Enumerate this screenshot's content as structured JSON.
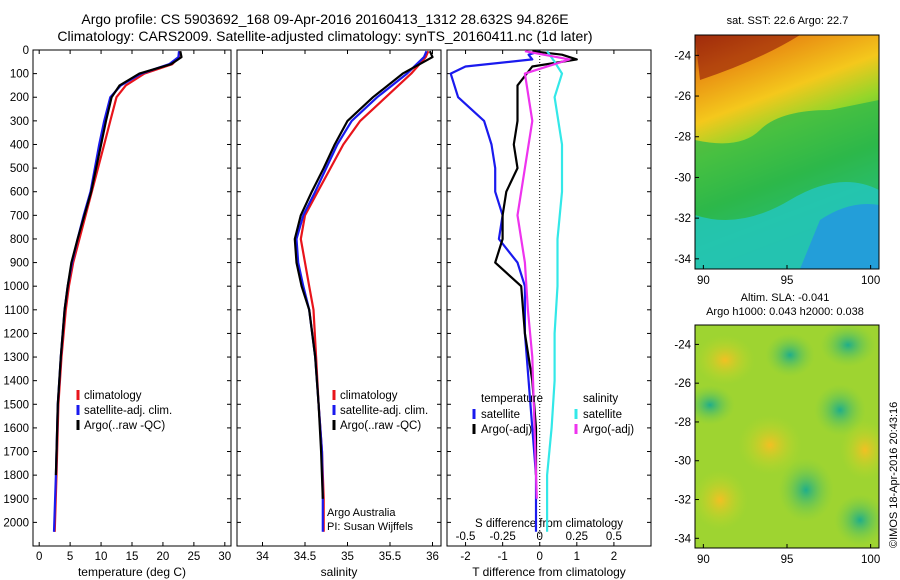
{
  "header": {
    "line1": "Argo profile: CS 5903692_168 09-Apr-2016 20160413_1312 28.632S 94.826E",
    "line2": "Climatology: CARS2009. Satellite-adjusted climatology: synTS_20160411.nc (1d later)"
  },
  "map_sst": {
    "title": "sat. SST: 22.6 Argo: 22.7"
  },
  "map_sla": {
    "title1": "Altim. SLA: -0.041",
    "title2": "Argo h1000: 0.043 h2000: 0.038"
  },
  "footer_credit": "©IMOS 18-Apr-2016 20:43:16",
  "annotation": {
    "line1": "Argo Australia",
    "line2": "PI: Susan Wijffels"
  },
  "colors": {
    "climatology": "#e8141b",
    "satellite": "#1a1aee",
    "argo": "#000000",
    "sal_satellite": "#33e8e8",
    "sal_argo": "#ee33ee"
  },
  "chart_data": [
    {
      "type": "line",
      "xlabel": "temperature (deg C)",
      "ylabel": "",
      "xlim": [
        -1,
        31
      ],
      "ylim": [
        2100,
        0
      ],
      "xticks": [
        0,
        5,
        10,
        15,
        20,
        25,
        30
      ],
      "yticks": [
        0,
        100,
        200,
        300,
        400,
        500,
        600,
        700,
        800,
        900,
        1000,
        1100,
        1200,
        1300,
        1400,
        1500,
        1600,
        1700,
        1800,
        1900,
        2000
      ],
      "legend": [
        "climatology",
        "satellite-adj. clim.",
        "Argo(..raw -QC)"
      ],
      "series": [
        {
          "name": "climatology",
          "color": "#e8141b",
          "x": [
            22.7,
            22.6,
            21.5,
            17,
            14,
            12.5,
            11.5,
            10.5,
            9.5,
            8.5,
            7.5,
            6.5,
            5.5,
            4.8,
            4.3,
            3.6,
            3.1,
            2.8,
            2.5
          ],
          "y": [
            5,
            30,
            60,
            100,
            150,
            200,
            300,
            400,
            500,
            600,
            700,
            800,
            900,
            1000,
            1100,
            1300,
            1500,
            1800,
            2040
          ]
        },
        {
          "name": "satellite-adj. clim.",
          "color": "#1a1aee",
          "x": [
            22.6,
            22.5,
            21,
            16.5,
            13.2,
            11.5,
            10.5,
            9.7,
            9,
            8.3,
            7.2,
            6.2,
            5.3,
            4.6,
            4.1,
            3.5,
            3.0,
            2.7,
            2.4
          ],
          "y": [
            5,
            30,
            60,
            100,
            150,
            200,
            300,
            400,
            500,
            600,
            700,
            800,
            900,
            1000,
            1100,
            1300,
            1500,
            1800,
            2040
          ]
        },
        {
          "name": "Argo(..raw -QC)",
          "color": "#000000",
          "x": [
            22.8,
            23.0,
            21.3,
            16.2,
            13.0,
            11.7,
            10.8,
            10,
            9.2,
            8.4,
            7.3,
            6.2,
            5.2,
            4.6,
            4.1,
            3.5,
            3.0,
            2.7
          ],
          "y": [
            5,
            30,
            60,
            100,
            150,
            200,
            300,
            400,
            500,
            600,
            700,
            800,
            900,
            1000,
            1100,
            1300,
            1500,
            1800
          ]
        }
      ]
    },
    {
      "type": "line",
      "xlabel": "salinity",
      "ylabel": "",
      "xlim": [
        33.7,
        36.1
      ],
      "ylim": [
        2100,
        0
      ],
      "xticks": [
        34,
        34.5,
        35,
        35.5,
        36
      ],
      "legend": [
        "climatology",
        "satellite-adj. clim.",
        "Argo(..raw -QC)"
      ],
      "series": [
        {
          "name": "climatology",
          "color": "#e8141b",
          "x": [
            35.95,
            35.92,
            35.75,
            35.45,
            35.15,
            34.95,
            34.8,
            34.65,
            34.5,
            34.45,
            34.5,
            34.55,
            34.6,
            34.63,
            34.66,
            34.7,
            34.72,
            34.72
          ],
          "y": [
            5,
            30,
            100,
            200,
            300,
            400,
            500,
            600,
            700,
            800,
            900,
            1000,
            1100,
            1300,
            1500,
            1700,
            1900,
            2040
          ]
        },
        {
          "name": "satellite-adj. clim.",
          "color": "#1a1aee",
          "x": [
            35.93,
            35.9,
            35.7,
            35.35,
            35.05,
            34.88,
            34.75,
            34.62,
            34.48,
            34.4,
            34.42,
            34.48,
            34.55,
            34.62,
            34.66,
            34.7,
            34.71,
            34.71
          ],
          "y": [
            5,
            30,
            100,
            200,
            300,
            400,
            500,
            600,
            700,
            800,
            900,
            1000,
            1100,
            1300,
            1500,
            1700,
            1900,
            2040
          ]
        },
        {
          "name": "Argo(..raw -QC)",
          "color": "#000000",
          "x": [
            35.97,
            36.0,
            35.65,
            35.3,
            35.0,
            34.85,
            34.72,
            34.58,
            34.45,
            34.38,
            34.4,
            34.46,
            34.55,
            34.62,
            34.66,
            34.69,
            34.71
          ],
          "y": [
            5,
            30,
            100,
            200,
            300,
            400,
            500,
            600,
            700,
            800,
            900,
            1000,
            1100,
            1300,
            1500,
            1700,
            1900
          ]
        }
      ]
    },
    {
      "type": "line",
      "xlabel": "T difference from climatology",
      "title_top": "S difference from climatology",
      "xlim": [
        -2.5,
        3
      ],
      "ylim": [
        2100,
        0
      ],
      "xticks": [
        -2,
        -1,
        0,
        1,
        2
      ],
      "xticks_top": [
        -0.5,
        -0.25,
        0,
        0.25,
        0.5
      ],
      "legend_t_title": "temperature",
      "legend_s_title": "salinity",
      "legend": [
        "satellite",
        "Argo(-adj)",
        "satellite",
        "Argo(-adj)"
      ],
      "series": [
        {
          "name": "satellite",
          "color": "#1a1aee",
          "x": [
            0,
            -0.3,
            -0.2,
            -2.0,
            -2.4,
            -2.2,
            -1.5,
            -1.3,
            -1.2,
            -1.2,
            -1.0,
            -1.1,
            -0.6,
            -0.4,
            -0.4,
            -0.3,
            -0.2,
            -0.1,
            -0.1
          ],
          "y": [
            5,
            20,
            40,
            70,
            100,
            200,
            300,
            400,
            500,
            600,
            700,
            800,
            900,
            1000,
            1200,
            1400,
            1600,
            1800,
            2040
          ]
        },
        {
          "name": "Argo(-adj)",
          "color": "#000000",
          "x": [
            -0.2,
            0.6,
            1.0,
            -0.2,
            -0.6,
            -0.6,
            -0.6,
            -0.7,
            -0.6,
            -0.9,
            -1.0,
            -1.0,
            -1.2,
            -0.5,
            -0.4,
            -0.2,
            -0.1,
            -0.1
          ],
          "y": [
            5,
            20,
            40,
            70,
            150,
            200,
            300,
            400,
            500,
            600,
            700,
            800,
            900,
            1000,
            1200,
            1400,
            1600,
            1800
          ]
        },
        {
          "name": "satellite",
          "color": "#33e8e8",
          "x": [
            0.05,
            0.1,
            0.15,
            0.1,
            0.15,
            0.15,
            0.12,
            0.12,
            0.1,
            0.1,
            0.08,
            0.05,
            0.05
          ],
          "y": [
            5,
            50,
            100,
            200,
            400,
            600,
            800,
            1000,
            1200,
            1400,
            1600,
            1800,
            2040
          ]
        },
        {
          "name": "Argo(-adj)",
          "color": "#ee33ee",
          "x": [
            -0.1,
            0.2,
            -0.1,
            -0.05,
            -0.1,
            -0.15,
            -0.1,
            -0.08,
            -0.05,
            -0.04,
            -0.03,
            -0.02
          ],
          "y": [
            5,
            40,
            100,
            300,
            500,
            700,
            900,
            1100,
            1300,
            1500,
            1700,
            1900
          ]
        }
      ]
    },
    {
      "type": "heatmap",
      "title": "sat. SST: 22.6 Argo: 22.7",
      "xlim": [
        89.5,
        100.5
      ],
      "ylim": [
        -34.5,
        -23
      ],
      "xticks": [
        90,
        95,
        100
      ],
      "yticks": [
        -24,
        -26,
        -28,
        -30,
        -32,
        -34
      ]
    },
    {
      "type": "heatmap",
      "title": "Altim. SLA: -0.041",
      "subtitle": "Argo h1000: 0.043 h2000: 0.038",
      "xlim": [
        89.5,
        100.5
      ],
      "ylim": [
        -34.5,
        -23
      ],
      "xticks": [
        90,
        95,
        100
      ],
      "yticks": [
        -24,
        -26,
        -28,
        -30,
        -32,
        -34
      ]
    }
  ]
}
